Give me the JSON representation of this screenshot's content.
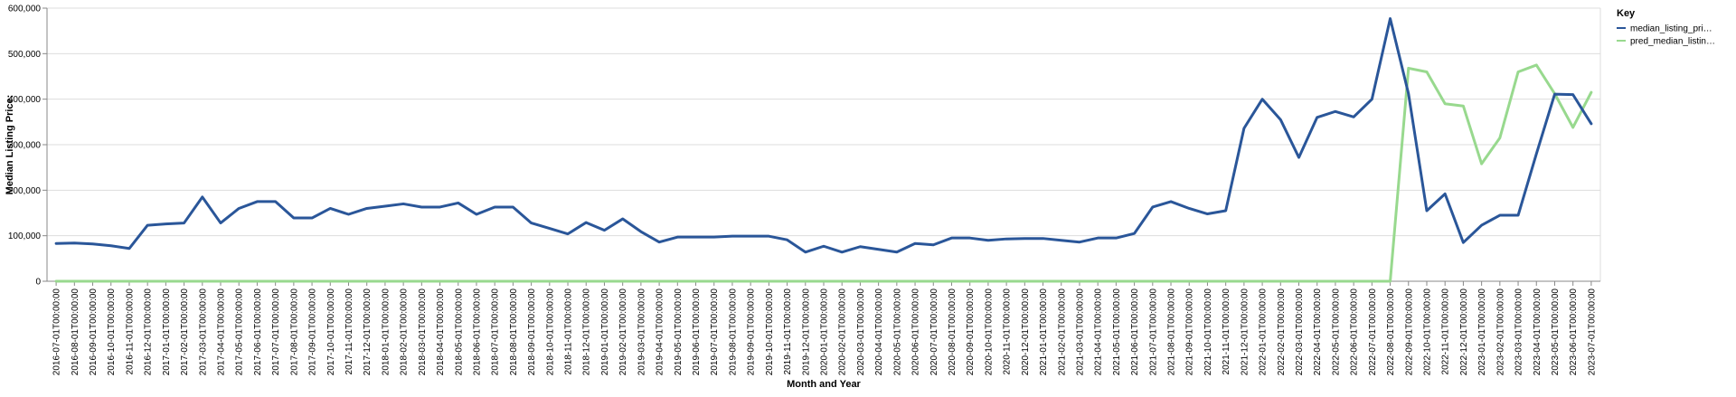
{
  "chart_data": {
    "type": "line",
    "xlabel": "Month and Year",
    "ylabel": "Median Listing Price:",
    "ylim": [
      0,
      600000
    ],
    "y_ticks": [
      0,
      100000,
      200000,
      300000,
      400000,
      500000,
      600000
    ],
    "y_tick_labels": [
      "0",
      "100,000",
      "200,000",
      "300,000",
      "400,000",
      "500,000",
      "600,000"
    ],
    "grid": true,
    "legend": {
      "title": "Key",
      "placement": "top-right",
      "entries": [
        "median_listing_pri…",
        "pred_median_listin…"
      ]
    },
    "x": [
      "2016-07-01T00:00:00",
      "2016-08-01T00:00:00",
      "2016-09-01T00:00:00",
      "2016-10-01T00:00:00",
      "2016-11-01T00:00:00",
      "2016-12-01T00:00:00",
      "2017-01-01T00:00:00",
      "2017-02-01T00:00:00",
      "2017-03-01T00:00:00",
      "2017-04-01T00:00:00",
      "2017-05-01T00:00:00",
      "2017-06-01T00:00:00",
      "2017-07-01T00:00:00",
      "2017-08-01T00:00:00",
      "2017-09-01T00:00:00",
      "2017-10-01T00:00:00",
      "2017-11-01T00:00:00",
      "2017-12-01T00:00:00",
      "2018-01-01T00:00:00",
      "2018-02-01T00:00:00",
      "2018-03-01T00:00:00",
      "2018-04-01T00:00:00",
      "2018-05-01T00:00:00",
      "2018-06-01T00:00:00",
      "2018-07-01T00:00:00",
      "2018-08-01T00:00:00",
      "2018-09-01T00:00:00",
      "2018-10-01T00:00:00",
      "2018-11-01T00:00:00",
      "2018-12-01T00:00:00",
      "2019-01-01T00:00:00",
      "2019-02-01T00:00:00",
      "2019-03-01T00:00:00",
      "2019-04-01T00:00:00",
      "2019-05-01T00:00:00",
      "2019-06-01T00:00:00",
      "2019-07-01T00:00:00",
      "2019-08-01T00:00:00",
      "2019-09-01T00:00:00",
      "2019-10-01T00:00:00",
      "2019-11-01T00:00:00",
      "2019-12-01T00:00:00",
      "2020-01-01T00:00:00",
      "2020-02-01T00:00:00",
      "2020-03-01T00:00:00",
      "2020-04-01T00:00:00",
      "2020-05-01T00:00:00",
      "2020-06-01T00:00:00",
      "2020-07-01T00:00:00",
      "2020-08-01T00:00:00",
      "2020-09-01T00:00:00",
      "2020-10-01T00:00:00",
      "2020-11-01T00:00:00",
      "2020-12-01T00:00:00",
      "2021-01-01T00:00:00",
      "2021-02-01T00:00:00",
      "2021-03-01T00:00:00",
      "2021-04-01T00:00:00",
      "2021-05-01T00:00:00",
      "2021-06-01T00:00:00",
      "2021-07-01T00:00:00",
      "2021-08-01T00:00:00",
      "2021-09-01T00:00:00",
      "2021-10-01T00:00:00",
      "2021-11-01T00:00:00",
      "2021-12-01T00:00:00",
      "2022-01-01T00:00:00",
      "2022-02-01T00:00:00",
      "2022-03-01T00:00:00",
      "2022-04-01T00:00:00",
      "2022-05-01T00:00:00",
      "2022-06-01T00:00:00",
      "2022-07-01T00:00:00",
      "2022-08-01T00:00:00",
      "2022-09-01T00:00:00",
      "2022-10-01T00:00:00",
      "2022-11-01T00:00:00",
      "2022-12-01T00:00:00",
      "2023-01-01T00:00:00",
      "2023-02-01T00:00:00",
      "2023-03-01T00:00:00",
      "2023-04-01T00:00:00",
      "2023-05-01T00:00:00",
      "2023-06-01T00:00:00",
      "2023-07-01T00:00:00"
    ],
    "series": [
      {
        "name": "median_listing_pri…",
        "color": "#2a5699",
        "values": [
          83000,
          84000,
          82000,
          78000,
          72000,
          123000,
          126000,
          128000,
          185000,
          128000,
          160000,
          175000,
          175000,
          139000,
          139000,
          160000,
          147000,
          160000,
          165000,
          170000,
          163000,
          163000,
          172000,
          147000,
          163000,
          163000,
          128000,
          116000,
          104000,
          129000,
          112000,
          137000,
          109000,
          86000,
          97000,
          97000,
          97000,
          99000,
          99000,
          99000,
          91000,
          64000,
          77000,
          64000,
          76000,
          70000,
          64000,
          83000,
          80000,
          95000,
          95000,
          90000,
          93000,
          94000,
          94000,
          90000,
          86000,
          95000,
          95000,
          105000,
          163000,
          175000,
          160000,
          148000,
          155000,
          336000,
          400000,
          355000,
          272000,
          360000,
          373000,
          361000,
          400000,
          577000,
          412000,
          155000,
          192000,
          85000,
          123000,
          145000,
          145000,
          280000,
          411000,
          410000,
          346000
        ]
      },
      {
        "name": "pred_median_listin…",
        "color": "#98d98e",
        "values": [
          0,
          0,
          0,
          0,
          0,
          0,
          0,
          0,
          0,
          0,
          0,
          0,
          0,
          0,
          0,
          0,
          0,
          0,
          0,
          0,
          0,
          0,
          0,
          0,
          0,
          0,
          0,
          0,
          0,
          0,
          0,
          0,
          0,
          0,
          0,
          0,
          0,
          0,
          0,
          0,
          0,
          0,
          0,
          0,
          0,
          0,
          0,
          0,
          0,
          0,
          0,
          0,
          0,
          0,
          0,
          0,
          0,
          0,
          0,
          0,
          0,
          0,
          0,
          0,
          0,
          0,
          0,
          0,
          0,
          0,
          0,
          0,
          0,
          0,
          468000,
          460000,
          390000,
          385000,
          258000,
          315000,
          460000,
          475000,
          412000,
          338000,
          415000
        ]
      }
    ]
  }
}
